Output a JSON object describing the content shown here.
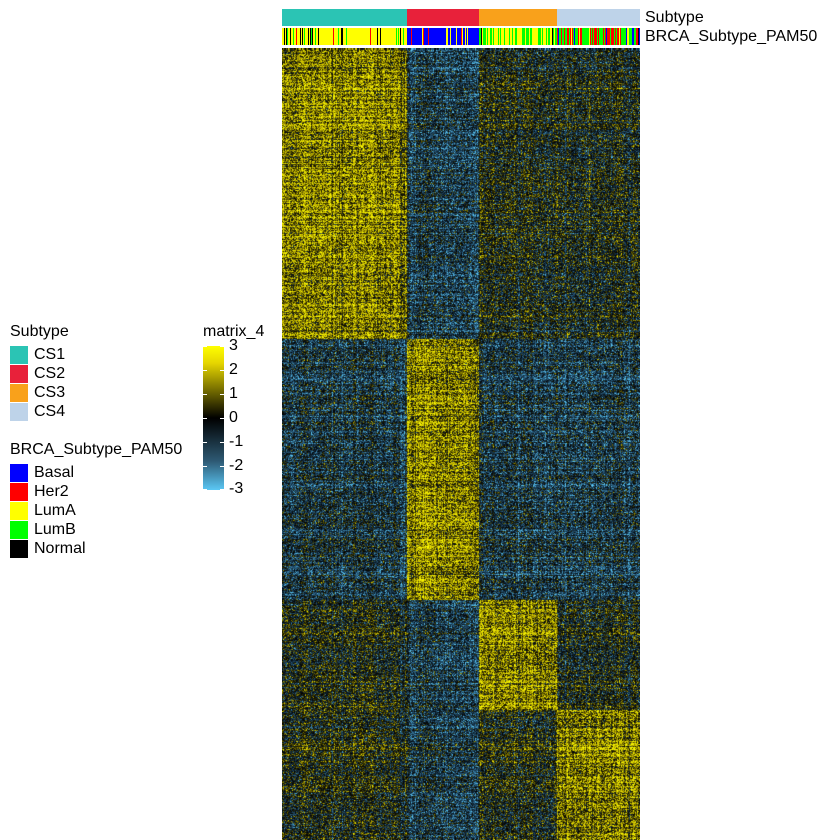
{
  "chart_data": {
    "type": "heatmap",
    "title": "",
    "matrix_name": "matrix_4",
    "color_scale": {
      "breaks": [
        3,
        2,
        1,
        0,
        -1,
        -2,
        -3
      ],
      "colors": [
        "#FFFF00",
        "#D2C400",
        "#6B6400",
        "#000000",
        "#163246",
        "#2F6A8E",
        "#5BC8F5"
      ]
    },
    "column_annotations": [
      {
        "name": "Subtype",
        "categories": [
          "CS1",
          "CS2",
          "CS3",
          "CS4"
        ],
        "colors": [
          "#2BC4B4",
          "#E8213A",
          "#F9A11B",
          "#BED3E9"
        ],
        "column_counts": [
          125,
          72,
          78,
          83
        ]
      },
      {
        "name": "BRCA_Subtype_PAM50",
        "categories": [
          "Basal",
          "Her2",
          "LumA",
          "LumB",
          "Normal"
        ],
        "colors": [
          "#0000FF",
          "#FF0000",
          "#FFFF00",
          "#00FF00",
          "#000000"
        ]
      }
    ],
    "row_blocks": [
      {
        "rows": 290,
        "high_in": "CS1"
      },
      {
        "rows": 260,
        "high_in": "CS2"
      },
      {
        "rows": 110,
        "high_in": "CS3"
      },
      {
        "rows": 130,
        "high_in": "CS4"
      }
    ]
  },
  "legends": {
    "subtype": {
      "title": "Subtype",
      "items": [
        {
          "label": "CS1",
          "color": "#2BC4B4"
        },
        {
          "label": "CS2",
          "color": "#E8213A"
        },
        {
          "label": "CS3",
          "color": "#F9A11B"
        },
        {
          "label": "CS4",
          "color": "#BED3E9"
        }
      ]
    },
    "pam50": {
      "title": "BRCA_Subtype_PAM50",
      "items": [
        {
          "label": "Basal",
          "color": "#0000FF"
        },
        {
          "label": "Her2",
          "color": "#FF0000"
        },
        {
          "label": "LumA",
          "color": "#FFFF00"
        },
        {
          "label": "LumB",
          "color": "#00FF00"
        },
        {
          "label": "Normal",
          "color": "#000000"
        }
      ]
    },
    "matrix": {
      "title": "matrix_4",
      "ticks": [
        "3",
        "2",
        "1",
        "0",
        "-1",
        "-2",
        "-3"
      ]
    }
  },
  "annotation_labels": {
    "subtype": "Subtype",
    "pam50": "BRCA_Subtype_PAM50"
  }
}
